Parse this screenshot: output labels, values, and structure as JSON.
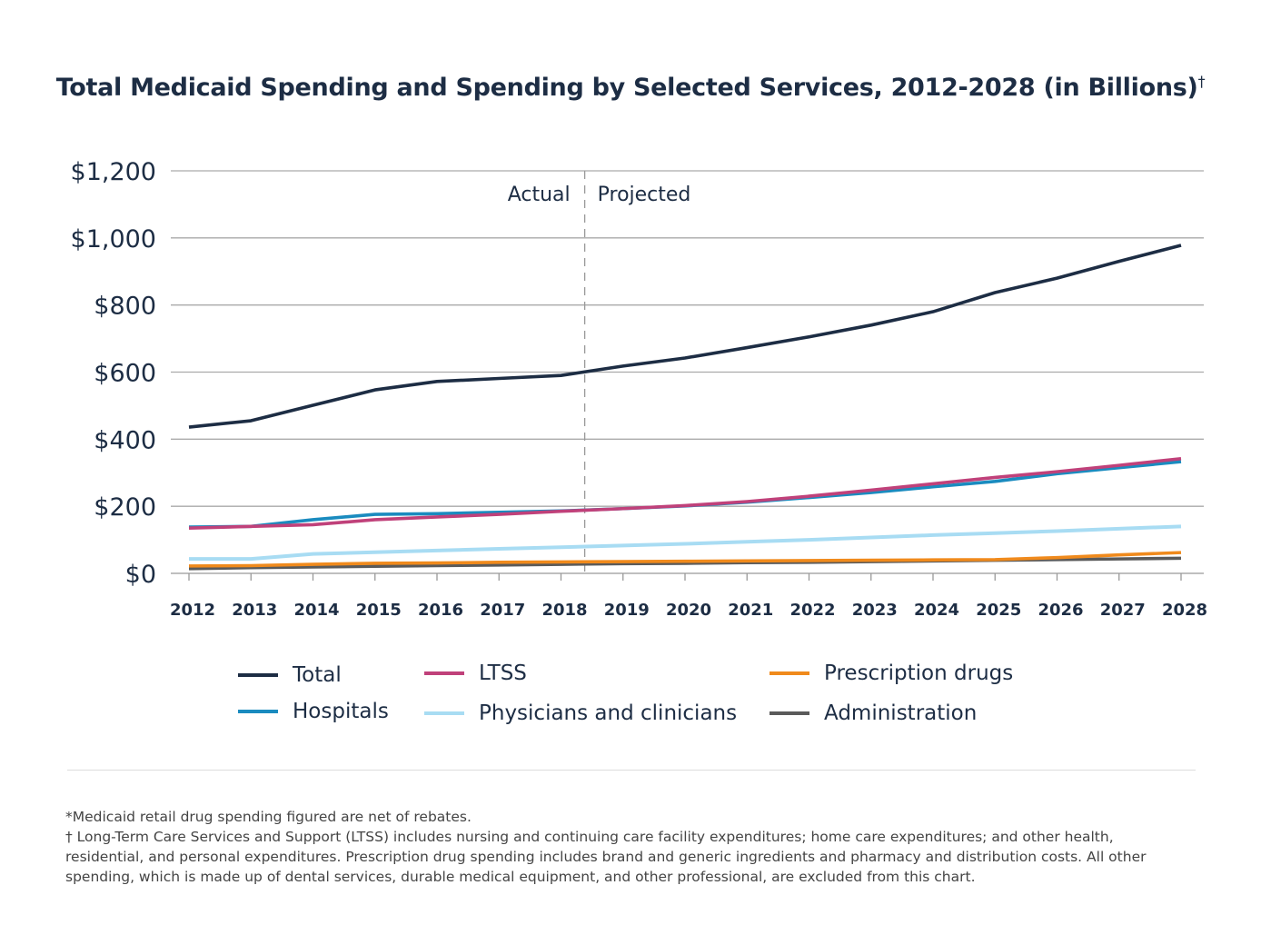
{
  "chart_data": {
    "type": "line",
    "title": "Total Medicaid Spending and Spending by Selected Services, 2012-2028 (in Billions)",
    "title_mark": "†",
    "x": [
      2012,
      2013,
      2014,
      2015,
      2016,
      2017,
      2018,
      2019,
      2020,
      2021,
      2022,
      2023,
      2024,
      2025,
      2026,
      2027,
      2028
    ],
    "x_tick_labels": [
      "2012",
      "2013",
      "2014",
      "2015",
      "2016",
      "2017",
      "2018",
      "2019",
      "2020",
      "2021",
      "2022",
      "2023",
      "2024",
      "2025",
      "2026",
      "2027",
      "2028"
    ],
    "ylim": [
      0,
      1200
    ],
    "y_ticks": [
      0,
      200,
      400,
      600,
      800,
      1000,
      1200
    ],
    "y_tick_labels": [
      "$0",
      "$200",
      "$400",
      "$600",
      "$800",
      "$1,000",
      "$1,200"
    ],
    "grid": true,
    "legend_position": "bottom",
    "annotations": {
      "divider_between": [
        2018,
        2019
      ],
      "left_label": "Actual",
      "right_label": "Projected"
    },
    "series": [
      {
        "name": "Total",
        "color": "#1d2d44",
        "values": [
          436,
          455,
          501,
          547,
          572,
          581,
          590,
          618,
          642,
          673,
          705,
          740,
          780,
          837,
          880,
          930,
          978
        ]
      },
      {
        "name": "LTSS",
        "color": "#c0417a",
        "values": [
          135,
          140,
          145,
          160,
          168,
          176,
          185,
          193,
          202,
          214,
          230,
          248,
          267,
          286,
          303,
          322,
          342
        ]
      },
      {
        "name": "Hospitals",
        "color": "#1a8bbf",
        "values": [
          138,
          140,
          160,
          176,
          178,
          182,
          186,
          193,
          201,
          212,
          226,
          241,
          258,
          274,
          297,
          315,
          333
        ]
      },
      {
        "name": "Physicians and clinicians",
        "color": "#a8dcf3",
        "values": [
          43,
          43,
          58,
          63,
          68,
          73,
          78,
          83,
          88,
          94,
          100,
          107,
          114,
          120,
          126,
          133,
          140
        ]
      },
      {
        "name": "Prescription drugs",
        "color": "#f08a1c",
        "values": [
          22,
          23,
          27,
          30,
          31,
          33,
          34,
          35,
          36,
          37,
          38,
          39,
          40,
          41,
          47,
          55,
          62
        ]
      },
      {
        "name": "Administration",
        "color": "#5a5a5a",
        "values": [
          14,
          17,
          19,
          21,
          23,
          25,
          27,
          29,
          30,
          32,
          33,
          35,
          37,
          39,
          41,
          43,
          45
        ]
      }
    ]
  },
  "legend_order": [
    0,
    2,
    1,
    3,
    4,
    5
  ],
  "notes": [
    "*Medicaid retail drug spending figured are net of rebates.",
    "† Long-Term Care Services and Support (LTSS) includes nursing and continuing care facility expenditures; home care expenditures; and other health, residential, and personal expenditures. Prescription drug spending includes brand and generic ingredients and pharmacy and distribution costs. All other spending, which is made up of dental services, durable medical equipment, and other professional, are excluded from this chart."
  ]
}
